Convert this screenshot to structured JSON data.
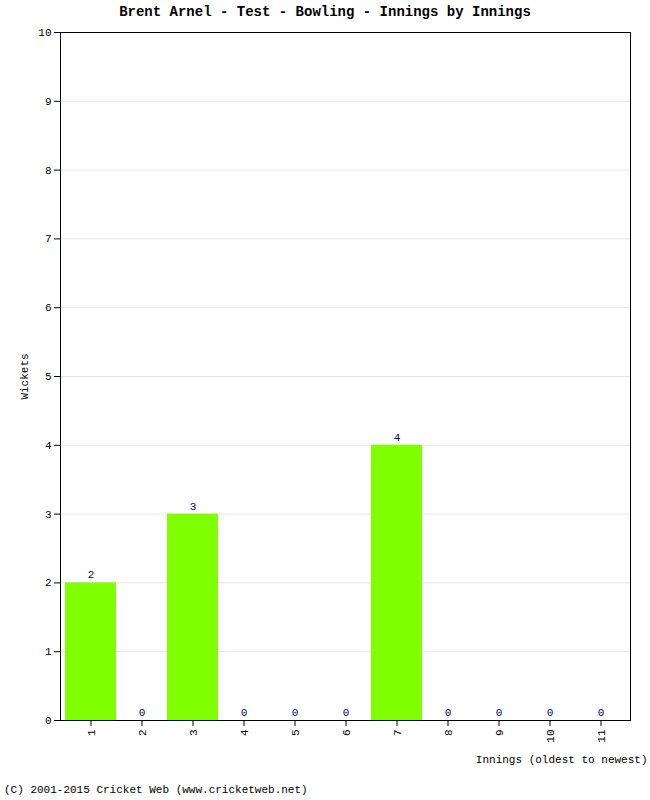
{
  "chart_data": {
    "type": "bar",
    "title": "Brent Arnel - Test - Bowling - Innings by Innings",
    "caption": "(C) 2001-2015 Cricket Web (www.cricketweb.net)",
    "x_label": "Innings (oldest to newest)",
    "y_label": "Wickets",
    "categories": [
      1,
      2,
      3,
      4,
      5,
      6,
      7,
      8,
      9,
      10,
      11
    ],
    "values": [
      2,
      0,
      3,
      0,
      0,
      0,
      4,
      0,
      0,
      0,
      0
    ],
    "color": "#7fff00",
    "ylim": [
      0,
      10
    ],
    "yticks": [
      0,
      1,
      2,
      3,
      4,
      5,
      6,
      7,
      8,
      9,
      10
    ],
    "grid": true,
    "data_labels": true
  }
}
